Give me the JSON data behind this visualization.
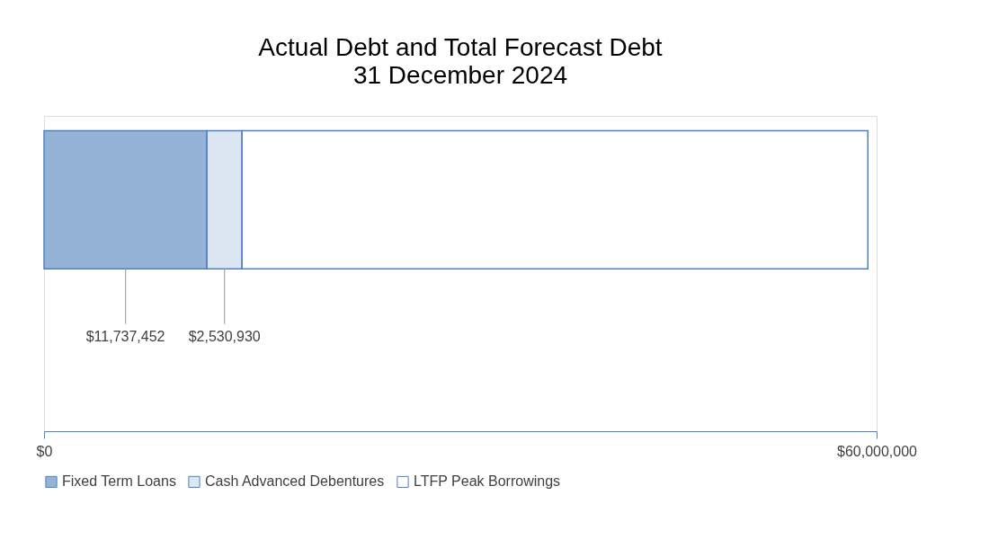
{
  "chart_data": {
    "type": "bar",
    "orientation": "horizontal",
    "stacked": true,
    "title": "Actual Debt and Total Forecast Debt",
    "subtitle": "31 December 2024",
    "categories": [
      null
    ],
    "series": [
      {
        "name": "Fixed Term Loans",
        "color": "#95b3d7",
        "values": [
          11737452
        ],
        "value_labels": [
          "$11,737,452"
        ]
      },
      {
        "name": "Cash Advanced Debentures",
        "color": "#dce6f2",
        "values": [
          2530930
        ],
        "value_labels": [
          "$2,530,930"
        ]
      },
      {
        "name": "LTFP Peak Borrowings",
        "color": "#ffffff",
        "values": [
          45100000
        ],
        "value_labels": [
          null
        ]
      }
    ],
    "xlim": [
      0,
      60000000
    ],
    "xticks": [
      {
        "value": 0,
        "label": "$0"
      },
      {
        "value": 60000000,
        "label": "$60,000,000"
      }
    ],
    "legend": "bottom",
    "tick_labels": "x"
  }
}
